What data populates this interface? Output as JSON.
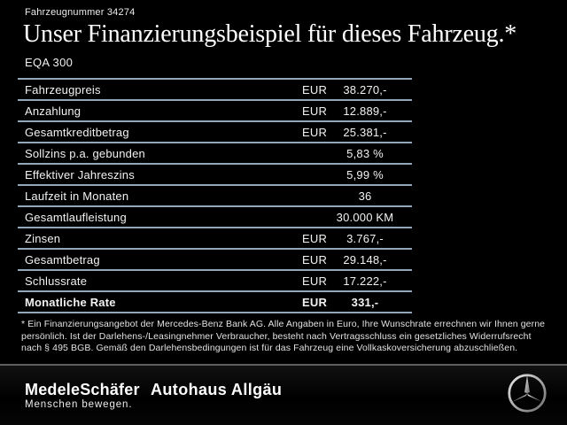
{
  "header": {
    "vehicle_number": "Fahrzeugnummer 34274",
    "title": "Unser Finanzierungsbeispiel für dieses Fahrzeug.*",
    "model": "EQA 300"
  },
  "table": {
    "rows": [
      {
        "label": "Fahrzeugpreis",
        "currency": "EUR",
        "value": "38.270,-",
        "bold": false
      },
      {
        "label": "Anzahlung",
        "currency": "EUR",
        "value": "12.889,-",
        "bold": false
      },
      {
        "label": "Gesamtkreditbetrag",
        "currency": "EUR",
        "value": "25.381,-",
        "bold": false
      },
      {
        "label": "Sollzins p.a. gebunden",
        "currency": "",
        "value": "5,83 %",
        "bold": false
      },
      {
        "label": "Effektiver Jahreszins",
        "currency": "",
        "value": "5,99 %",
        "bold": false
      },
      {
        "label": "Laufzeit in Monaten",
        "currency": "",
        "value": "36",
        "bold": false
      },
      {
        "label": "Gesamtlaufleistung",
        "currency": "",
        "value": "30.000 KM",
        "bold": false
      },
      {
        "label": "Zinsen",
        "currency": "EUR",
        "value": "3.767,-",
        "bold": false
      },
      {
        "label": "Gesamtbetrag",
        "currency": "EUR",
        "value": "29.148,-",
        "bold": false
      },
      {
        "label": "Schlussrate",
        "currency": "EUR",
        "value": "17.222,-",
        "bold": false
      },
      {
        "label": "Monatliche Rate",
        "currency": "EUR",
        "value": "331,-",
        "bold": true
      }
    ]
  },
  "footnote": {
    "text": "* Ein Finanzierungsangebot der Mercedes-Benz Bank AG. Alle Angaben in Euro, Ihre Wunschrate errechnen wir Ihnen gerne persönlich. Ist der Darlehens-/Leasingnehmer Verbraucher, besteht nach Vertragsschluss ein gesetzliches Widerrufsrecht nach § 495 BGB. Gemäß den Darlehensbedingungen ist für das Fahrzeug eine Vollkaskoversicherung abzuschließen."
  },
  "footer": {
    "dealer_primary": "MedeleSchäfer",
    "dealer_tagline": "Menschen bewegen.",
    "dealer_secondary": "Autohaus Allgäu",
    "brand_icon": "mercedes-star-icon"
  },
  "colors": {
    "background": "#000000",
    "table_line": "#92a7b9",
    "footer_divider": "#5f5f5f",
    "text": "#f2f2f2"
  }
}
